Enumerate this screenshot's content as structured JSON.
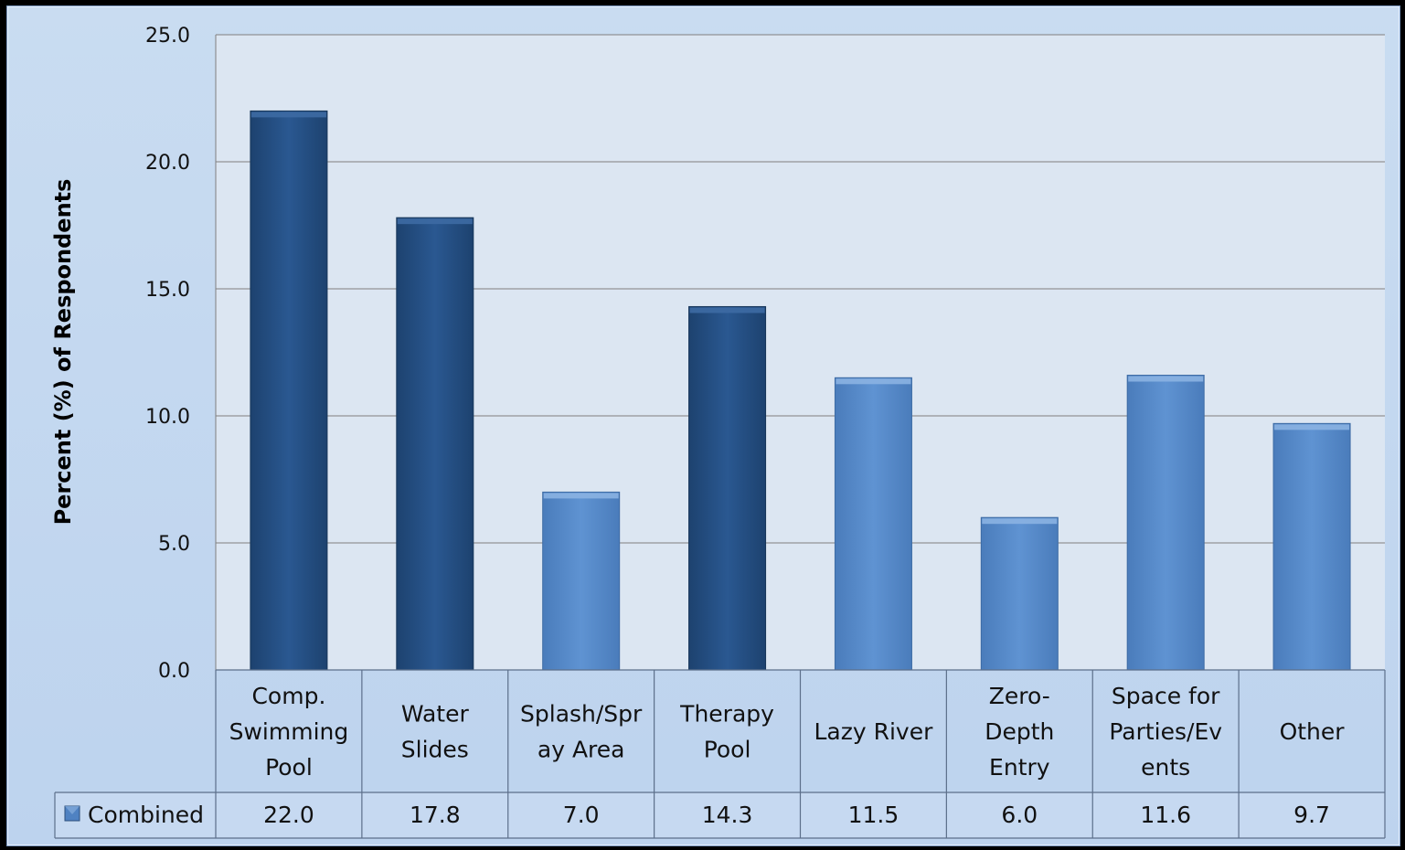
{
  "chart_data": {
    "type": "bar",
    "ylabel": "Percent (%) of Respondents",
    "ylim": [
      0,
      25
    ],
    "yticks": [
      "0.0",
      "5.0",
      "10.0",
      "15.0",
      "20.0",
      "25.0"
    ],
    "categories": [
      [
        "Comp.",
        "Swimming",
        "Pool"
      ],
      [
        "Water",
        "Slides"
      ],
      [
        "Splash/Spr",
        "ay Area"
      ],
      [
        "Therapy",
        "Pool"
      ],
      [
        "Lazy River"
      ],
      [
        "Zero-",
        "Depth",
        "Entry"
      ],
      [
        "Space for",
        "Parties/Ev",
        "ents"
      ],
      [
        "Other"
      ]
    ],
    "series": [
      {
        "name": "Combined",
        "values": [
          22.0,
          17.8,
          7.0,
          14.3,
          11.5,
          6.0,
          11.6,
          9.7
        ],
        "value_labels": [
          "22.0",
          "17.8",
          "7.0",
          "14.3",
          "11.5",
          "6.0",
          "11.6",
          "9.7"
        ]
      }
    ],
    "highlight": [
      true,
      true,
      false,
      true,
      false,
      false,
      false,
      false
    ],
    "colors": {
      "dark": "#244f85",
      "light": "#5689c8",
      "grid": "#7f7f7f",
      "plot_bg": "#dce6f2"
    },
    "grid": true,
    "legend": "data-table"
  }
}
